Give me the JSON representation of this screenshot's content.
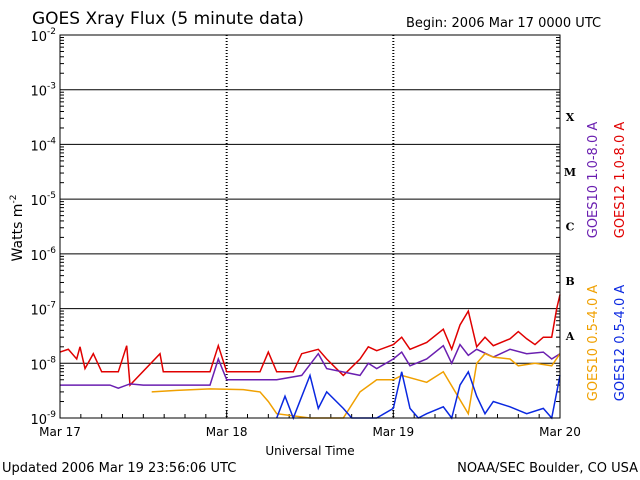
{
  "chart_data": {
    "type": "line",
    "title": "GOES Xray Flux (5 minute data)",
    "begin_label": "Begin:  2006 Mar 17 0000 UTC",
    "xlabel": "Universal Time",
    "ylabel": "Watts m",
    "ylabel_exp": "-2",
    "y_scale": "log",
    "ylim": [
      1e-09,
      0.01
    ],
    "y_ticks": [
      {
        "base": "10",
        "exp": "-2"
      },
      {
        "base": "10",
        "exp": "-3"
      },
      {
        "base": "10",
        "exp": "-4"
      },
      {
        "base": "10",
        "exp": "-5"
      },
      {
        "base": "10",
        "exp": "-6"
      },
      {
        "base": "10",
        "exp": "-7"
      },
      {
        "base": "10",
        "exp": "-8"
      },
      {
        "base": "10",
        "exp": "-9"
      }
    ],
    "x_ticks": [
      "Mar 17",
      "Mar 18",
      "Mar 19",
      "Mar 20"
    ],
    "xlim_days": [
      0,
      3
    ],
    "flare_classes": [
      "X",
      "M",
      "C",
      "B",
      "A"
    ],
    "legend_right": [
      {
        "label": "GOES10 1.0-8.0 A",
        "color": "#6a1fb0"
      },
      {
        "label": "GOES12 1.0-8.0 A",
        "color": "#e00000"
      },
      {
        "label": "GOES10 0.5-4.0 A",
        "color": "#f0a000"
      },
      {
        "label": "GOES12 0.5-4.0 A",
        "color": "#0a28e0"
      }
    ],
    "series": [
      {
        "name": "GOES12 1.0-8.0 A",
        "color": "#e00000",
        "points": [
          [
            0,
            1.6e-08
          ],
          [
            0.05,
            1.8e-08
          ],
          [
            0.1,
            1.2e-08
          ],
          [
            0.12,
            2e-08
          ],
          [
            0.15,
            8e-09
          ],
          [
            0.2,
            1.5e-08
          ],
          [
            0.25,
            7e-09
          ],
          [
            0.35,
            7e-09
          ],
          [
            0.4,
            2.1e-08
          ],
          [
            0.42,
            4e-09
          ],
          [
            0.6,
            1.5e-08
          ],
          [
            0.62,
            7e-09
          ],
          [
            0.9,
            7e-09
          ],
          [
            0.95,
            2.1e-08
          ],
          [
            1.0,
            7e-09
          ],
          [
            1.2,
            7e-09
          ],
          [
            1.25,
            1.6e-08
          ],
          [
            1.3,
            7e-09
          ],
          [
            1.4,
            7e-09
          ],
          [
            1.45,
            1.5e-08
          ],
          [
            1.55,
            1.8e-08
          ],
          [
            1.6,
            1.2e-08
          ],
          [
            1.7,
            6e-09
          ],
          [
            1.8,
            1.2e-08
          ],
          [
            1.85,
            2e-08
          ],
          [
            1.9,
            1.7e-08
          ],
          [
            2.0,
            2.2e-08
          ],
          [
            2.05,
            3e-08
          ],
          [
            2.1,
            1.8e-08
          ],
          [
            2.2,
            2.4e-08
          ],
          [
            2.3,
            4.2e-08
          ],
          [
            2.35,
            1.8e-08
          ],
          [
            2.4,
            5e-08
          ],
          [
            2.45,
            9e-08
          ],
          [
            2.5,
            2e-08
          ],
          [
            2.55,
            3e-08
          ],
          [
            2.6,
            2.1e-08
          ],
          [
            2.7,
            2.8e-08
          ],
          [
            2.75,
            3.8e-08
          ],
          [
            2.8,
            2.8e-08
          ],
          [
            2.85,
            2.2e-08
          ],
          [
            2.9,
            3e-08
          ],
          [
            2.95,
            3e-08
          ],
          [
            2.98,
            1e-07
          ],
          [
            3.0,
            1.8e-07
          ]
        ]
      },
      {
        "name": "GOES10 1.0-8.0 A",
        "color": "#6a1fb0",
        "points": [
          [
            0,
            4e-09
          ],
          [
            0.05,
            4e-09
          ],
          [
            0.1,
            4e-09
          ],
          [
            0.15,
            4e-09
          ],
          [
            0.3,
            4e-09
          ],
          [
            0.35,
            3.5e-09
          ],
          [
            0.42,
            4.2e-09
          ],
          [
            0.5,
            4e-09
          ],
          [
            0.6,
            4e-09
          ],
          [
            0.7,
            4e-09
          ],
          [
            0.9,
            4e-09
          ],
          [
            0.95,
            1.2e-08
          ],
          [
            1.0,
            5e-09
          ],
          [
            1.1,
            5e-09
          ],
          [
            1.3,
            5e-09
          ],
          [
            1.45,
            6e-09
          ],
          [
            1.55,
            1.5e-08
          ],
          [
            1.6,
            8e-09
          ],
          [
            1.8,
            6e-09
          ],
          [
            1.85,
            1e-08
          ],
          [
            1.9,
            8e-09
          ],
          [
            2.0,
            1.2e-08
          ],
          [
            2.05,
            1.6e-08
          ],
          [
            2.1,
            9e-09
          ],
          [
            2.2,
            1.2e-08
          ],
          [
            2.3,
            2.1e-08
          ],
          [
            2.35,
            1e-08
          ],
          [
            2.4,
            2.2e-08
          ],
          [
            2.45,
            1.4e-08
          ],
          [
            2.5,
            1.8e-08
          ],
          [
            2.6,
            1.3e-08
          ],
          [
            2.7,
            1.8e-08
          ],
          [
            2.8,
            1.5e-08
          ],
          [
            2.9,
            1.6e-08
          ],
          [
            2.95,
            1.2e-08
          ],
          [
            3.0,
            1.5e-08
          ]
        ]
      },
      {
        "name": "GOES10 0.5-4.0 A",
        "color": "#f0a000",
        "points": [
          [
            0.55,
            3e-09
          ],
          [
            0.7,
            3.2e-09
          ],
          [
            0.9,
            3.4e-09
          ],
          [
            1.1,
            3.3e-09
          ],
          [
            1.2,
            3e-09
          ],
          [
            1.25,
            2e-09
          ],
          [
            1.3,
            1.2e-09
          ],
          [
            1.5,
            1e-09
          ],
          [
            1.6,
            1e-09
          ],
          [
            1.7,
            1e-09
          ],
          [
            1.8,
            3e-09
          ],
          [
            1.9,
            5e-09
          ],
          [
            2.0,
            5e-09
          ],
          [
            2.05,
            6e-09
          ],
          [
            2.2,
            4.5e-09
          ],
          [
            2.3,
            7e-09
          ],
          [
            2.45,
            1.2e-09
          ],
          [
            2.5,
            1e-08
          ],
          [
            2.55,
            1.5e-08
          ],
          [
            2.6,
            1.3e-08
          ],
          [
            2.7,
            1.2e-08
          ],
          [
            2.75,
            9e-09
          ],
          [
            2.85,
            1e-08
          ],
          [
            2.95,
            9e-09
          ],
          [
            3.0,
            1.5e-08
          ]
        ]
      },
      {
        "name": "GOES12 0.5-4.0 A",
        "color": "#0a28e0",
        "points": [
          [
            1.3,
            1e-09
          ],
          [
            1.35,
            2.5e-09
          ],
          [
            1.4,
            1e-09
          ],
          [
            1.5,
            6e-09
          ],
          [
            1.55,
            1.5e-09
          ],
          [
            1.6,
            3e-09
          ],
          [
            1.7,
            1.5e-09
          ],
          [
            1.75,
            1e-09
          ],
          [
            1.8,
            1e-09
          ],
          [
            1.9,
            1e-09
          ],
          [
            2.0,
            1.5e-09
          ],
          [
            2.05,
            7e-09
          ],
          [
            2.1,
            1.5e-09
          ],
          [
            2.15,
            1e-09
          ],
          [
            2.2,
            1.2e-09
          ],
          [
            2.3,
            1.6e-09
          ],
          [
            2.35,
            1e-09
          ],
          [
            2.4,
            4e-09
          ],
          [
            2.45,
            7e-09
          ],
          [
            2.5,
            2.5e-09
          ],
          [
            2.55,
            1.2e-09
          ],
          [
            2.6,
            2e-09
          ],
          [
            2.7,
            1.6e-09
          ],
          [
            2.8,
            1.2e-09
          ],
          [
            2.9,
            1.5e-09
          ],
          [
            2.95,
            1e-09
          ],
          [
            3.0,
            6e-09
          ]
        ]
      }
    ]
  },
  "footer": {
    "updated": "Updated 2006 Mar 19 23:56:06 UTC",
    "source": "NOAA/SEC Boulder, CO USA"
  }
}
